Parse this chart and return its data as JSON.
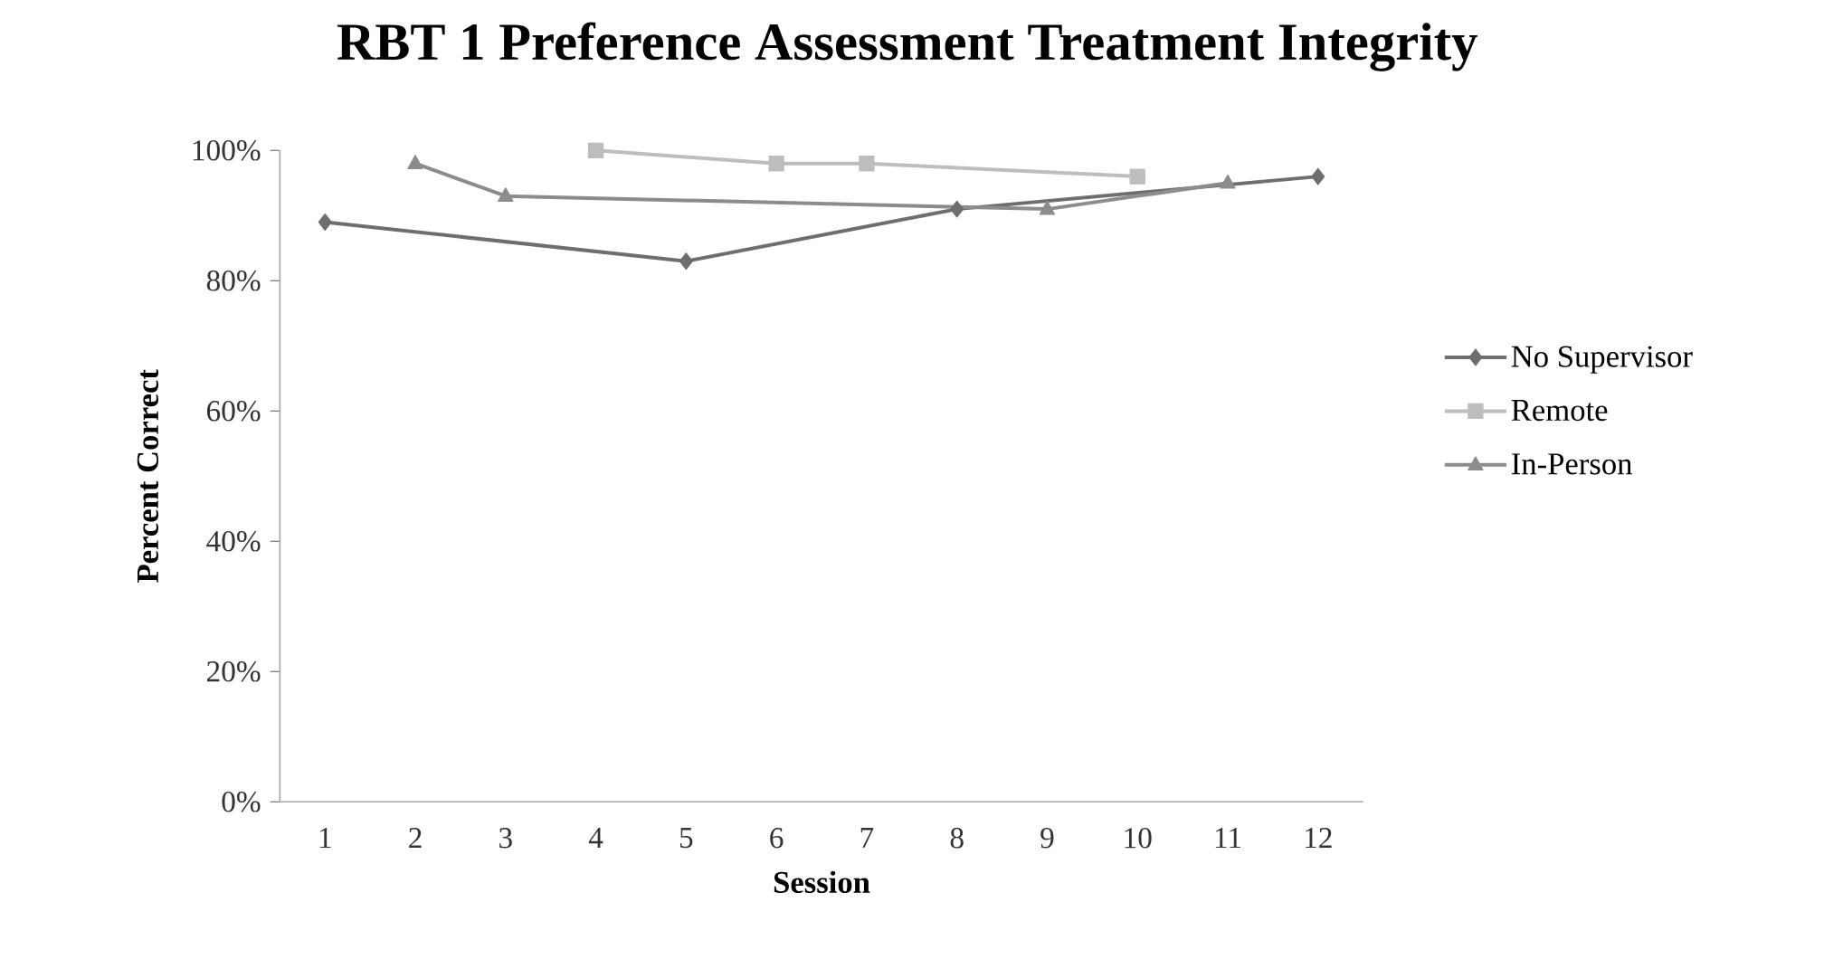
{
  "chart_data": {
    "type": "line",
    "title": "RBT 1 Preference Assessment Treatment Integrity",
    "xlabel": "Session",
    "ylabel": "Percent Correct",
    "xlim": [
      0.5,
      12.5
    ],
    "xticks": [
      1,
      2,
      3,
      4,
      5,
      6,
      7,
      8,
      9,
      10,
      11,
      12
    ],
    "ylim": [
      0,
      100
    ],
    "yticks": [
      {
        "value": 0,
        "label": "0%"
      },
      {
        "value": 20,
        "label": "20%"
      },
      {
        "value": 40,
        "label": "40%"
      },
      {
        "value": 60,
        "label": "60%"
      },
      {
        "value": 80,
        "label": "80%"
      },
      {
        "value": 100,
        "label": "100%"
      }
    ],
    "grid": false,
    "legend": "right",
    "series": [
      {
        "name": "No Supervisor",
        "color": "#6e6e6e",
        "marker": "diamond",
        "x": [
          1,
          5,
          8,
          12
        ],
        "values": [
          89,
          83,
          91,
          96
        ]
      },
      {
        "name": "Remote",
        "color": "#bdbdbd",
        "marker": "square",
        "x": [
          4,
          6,
          7,
          10
        ],
        "values": [
          100,
          98,
          98,
          96
        ]
      },
      {
        "name": "In-Person",
        "color": "#8c8c8c",
        "marker": "triangle",
        "x": [
          2,
          3,
          9,
          11
        ],
        "values": [
          98,
          93,
          91,
          95
        ]
      }
    ]
  }
}
